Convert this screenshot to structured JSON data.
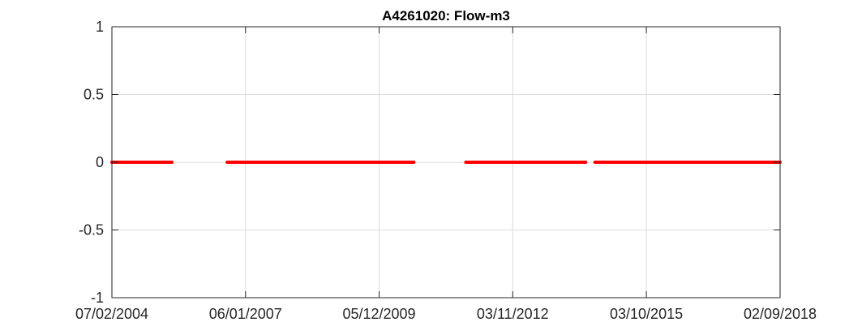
{
  "chart_data": {
    "type": "line",
    "title": "A4261020: Flow-m3",
    "xlabel": "",
    "ylabel": "",
    "x_axis_type": "date",
    "xlim": [
      "07/02/2004",
      "02/09/2018"
    ],
    "ylim": [
      -1,
      1
    ],
    "x_ticks": [
      "07/02/2004",
      "06/01/2007",
      "05/12/2009",
      "03/11/2012",
      "03/10/2015",
      "02/09/2018"
    ],
    "y_ticks": [
      "1",
      "0.5",
      "0",
      "-0.5",
      "-1"
    ],
    "grid": true,
    "series": [
      {
        "color": "#ff0000",
        "segments": [
          {
            "x": [
              "07/02/2004",
              "29/12/2004"
            ],
            "y": [
              0,
              0
            ]
          },
          {
            "x": [
              "09/01/2005",
              "30/05/2005"
            ],
            "y": [
              0,
              0
            ]
          },
          {
            "x": [
              "13/08/2006",
              "08/09/2010"
            ],
            "y": [
              0,
              0
            ]
          },
          {
            "x": [
              "26/10/2011",
              "07/06/2014"
            ],
            "y": [
              0,
              0
            ]
          },
          {
            "x": [
              "20/08/2014",
              "02/09/2018"
            ],
            "y": [
              0,
              0
            ]
          }
        ]
      }
    ]
  }
}
